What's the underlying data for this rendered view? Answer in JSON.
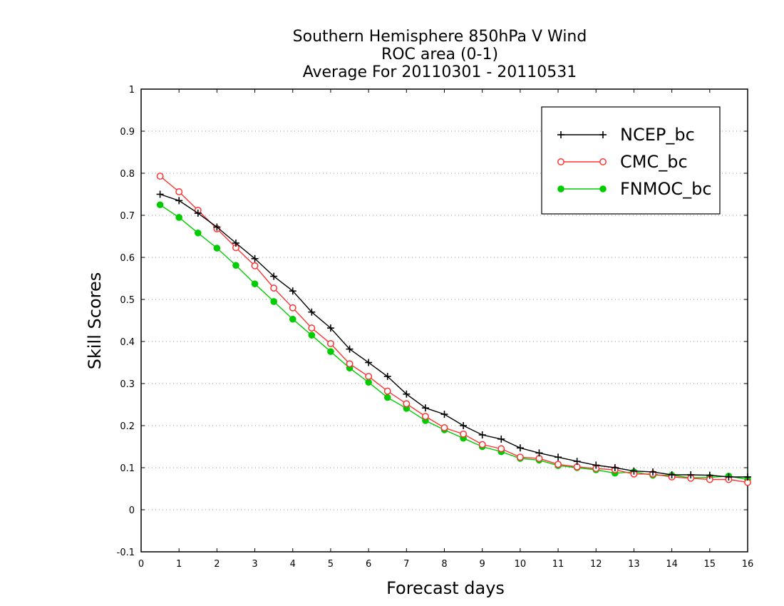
{
  "chart_data": {
    "type": "line",
    "title_lines": [
      "Southern Hemisphere 850hPa V Wind",
      "ROC area (0-1)",
      "Average For 20110301 - 20110531"
    ],
    "xlabel": "Forecast days",
    "ylabel": "Skill Scores",
    "xlim": [
      0,
      16
    ],
    "ylim": [
      -0.1,
      1
    ],
    "xticks": [
      0,
      1,
      2,
      3,
      4,
      5,
      6,
      7,
      8,
      9,
      10,
      11,
      12,
      13,
      14,
      15,
      16
    ],
    "yticks": [
      -0.1,
      0,
      0.1,
      0.2,
      0.3,
      0.4,
      0.5,
      0.6,
      0.7,
      0.8,
      0.9,
      1
    ],
    "ytick_labels": [
      "-0.1",
      "0",
      "0.1",
      "0.2",
      "0.3",
      "0.4",
      "0.5",
      "0.6",
      "0.7",
      "0.8",
      "0.9",
      "1"
    ],
    "grid": "horizontal dotted",
    "legend_position": "top-right",
    "x": [
      0.5,
      1,
      1.5,
      2,
      2.5,
      3,
      3.5,
      4,
      4.5,
      5,
      5.5,
      6,
      6.5,
      7,
      7.5,
      8,
      8.5,
      9,
      9.5,
      10,
      10.5,
      11,
      11.5,
      12,
      12.5,
      13,
      13.5,
      14,
      14.5,
      15,
      15.5,
      16
    ],
    "series": [
      {
        "name": "NCEP_bc",
        "color": "#000000",
        "marker": "plus",
        "values": [
          0.75,
          0.735,
          0.705,
          0.672,
          0.634,
          0.597,
          0.555,
          0.52,
          0.47,
          0.432,
          0.382,
          0.35,
          0.317,
          0.275,
          0.242,
          0.227,
          0.2,
          0.178,
          0.168,
          0.147,
          0.135,
          0.125,
          0.115,
          0.106,
          0.1,
          0.092,
          0.09,
          0.083,
          0.083,
          0.082,
          0.078,
          0.078
        ]
      },
      {
        "name": "CMC_bc",
        "color": "#ff3333",
        "marker": "open-circle",
        "values": [
          0.793,
          0.756,
          0.712,
          0.668,
          0.623,
          0.58,
          0.527,
          0.48,
          0.432,
          0.395,
          0.347,
          0.317,
          0.282,
          0.252,
          0.222,
          0.195,
          0.18,
          0.155,
          0.145,
          0.125,
          0.122,
          0.108,
          0.102,
          0.098,
          0.095,
          0.085,
          0.085,
          0.078,
          0.075,
          0.072,
          0.072,
          0.065
        ]
      },
      {
        "name": "FNMOC_bc",
        "color": "#00cc00",
        "marker": "filled-circle",
        "values": [
          0.725,
          0.695,
          0.658,
          0.622,
          0.581,
          0.537,
          0.495,
          0.453,
          0.415,
          0.376,
          0.337,
          0.303,
          0.267,
          0.241,
          0.212,
          0.19,
          0.17,
          0.15,
          0.138,
          0.122,
          0.118,
          0.105,
          0.1,
          0.095,
          0.087,
          0.09,
          0.082,
          0.082,
          0.076,
          0.077,
          0.08,
          0.072
        ]
      }
    ]
  }
}
